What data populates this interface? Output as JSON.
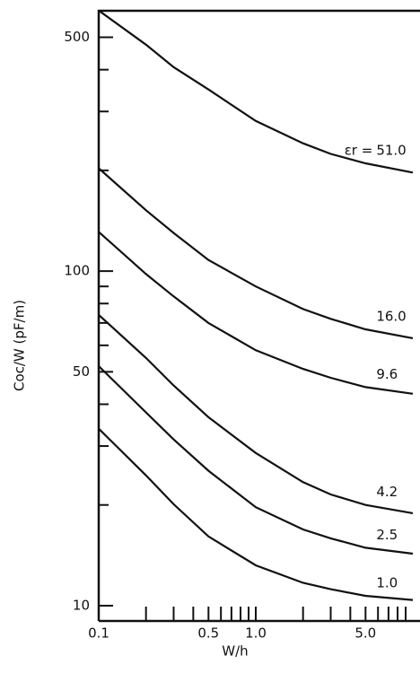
{
  "chart_data": {
    "type": "line",
    "x_label": "W/h",
    "y_label": "Coc/W (pF/m)",
    "legend_prefix": "εr =",
    "x": [
      0.1,
      0.2,
      0.3,
      0.5,
      1.0,
      2.0,
      3.0,
      5.0,
      10.0
    ],
    "series": [
      {
        "name": "51.0",
        "color": "#111111",
        "values": [
          601,
          475,
          407,
          349,
          281,
          241,
          224,
          210,
          197
        ]
      },
      {
        "name": "16.0",
        "color": "#111111",
        "values": [
          203,
          152,
          130,
          108,
          90,
          77,
          72,
          67,
          63
        ]
      },
      {
        "name": "9.6",
        "color": "#111111",
        "values": [
          131,
          98,
          84,
          70,
          58,
          51,
          48,
          45,
          43
        ]
      },
      {
        "name": "4.2",
        "color": "#111111",
        "values": [
          74,
          55,
          45.5,
          36.6,
          28.6,
          23.4,
          21.5,
          20,
          18.9
        ]
      },
      {
        "name": "2.5",
        "color": "#111111",
        "values": [
          52,
          37.8,
          31.4,
          25.3,
          19.7,
          16.9,
          15.9,
          14.9,
          14.3
        ]
      },
      {
        "name": "1.0",
        "color": "#111111",
        "values": [
          33.8,
          24.5,
          20.1,
          16.1,
          13.2,
          11.7,
          11.2,
          10.7,
          10.4
        ]
      }
    ],
    "xlim": [
      0.1,
      10
    ],
    "ylim": [
      9,
      600
    ],
    "x_log": true,
    "y_log": true,
    "xticks": [
      0.1,
      0.5,
      {
        "value": 1,
        "label": "1.0"
      },
      {
        "value": 5,
        "label": "5.0"
      }
    ],
    "x_minor_ticks": [
      0.2,
      0.3,
      0.4,
      0.6,
      0.7,
      0.8,
      0.9,
      2,
      3,
      4,
      6,
      7,
      8,
      9
    ],
    "yticks": [
      10,
      50,
      100,
      500
    ],
    "y_minor_ticks": [
      20,
      30,
      40,
      60,
      70,
      80,
      90,
      200,
      300,
      400
    ]
  }
}
